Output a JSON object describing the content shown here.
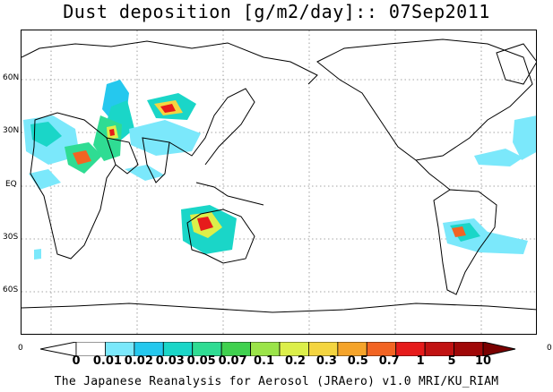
{
  "title": "Dust deposition [g/m2/day]:: 07Sep2011",
  "lat_labels": [
    "60N",
    "30N",
    "EQ",
    "30S",
    "60S"
  ],
  "colorbar": {
    "left_end_label": "0",
    "right_end_label": "0",
    "ticks": [
      "0",
      "0.01",
      "0.02",
      "0.03",
      "0.05",
      "0.07",
      "0.1",
      "0.2",
      "0.3",
      "0.5",
      "0.7",
      "1",
      "5",
      "10"
    ],
    "colors": [
      "#ffffff",
      "#ffffff",
      "#7be8fb",
      "#25c8ee",
      "#1ad6c8",
      "#2fdc93",
      "#40d14f",
      "#9be449",
      "#dcef4a",
      "#f4d540",
      "#f5a42a",
      "#f26423",
      "#e61b1b",
      "#c11212",
      "#a00808",
      "#7a0000"
    ]
  },
  "credit": "The Japanese Reanalysis for Aerosol (JRAero) v1.0 MRI/KU_RIAM"
}
